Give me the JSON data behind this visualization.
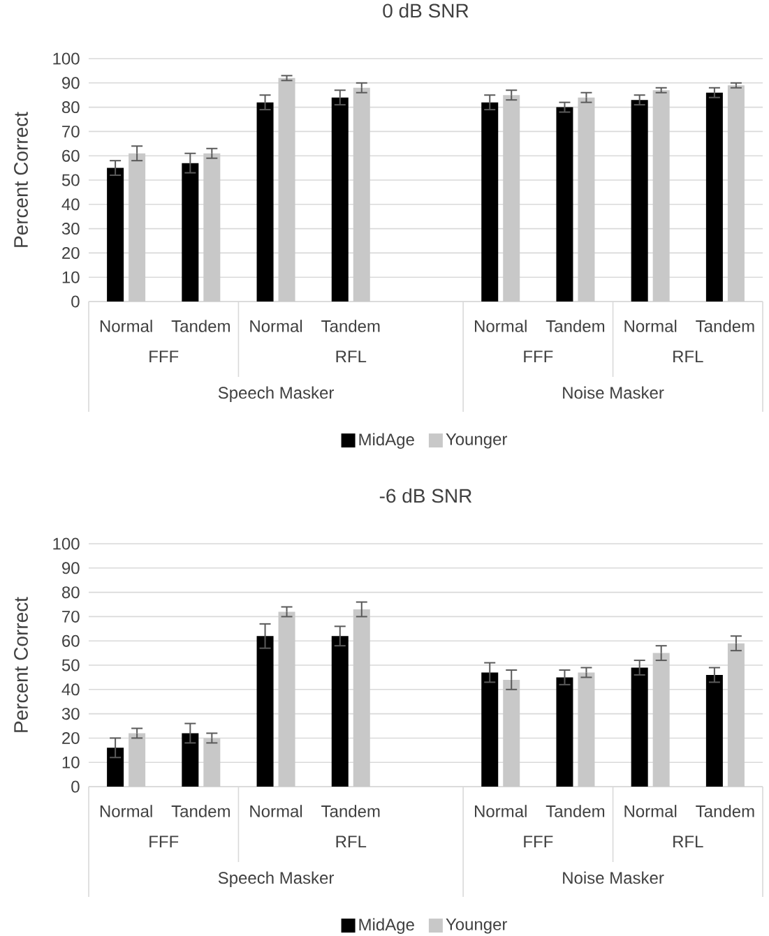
{
  "chart_data": [
    {
      "type": "bar",
      "title": "0 dB SNR",
      "ylabel": "Percent Correct",
      "categories": [
        "Normal",
        "Tandem",
        "Normal",
        "Tandem",
        null,
        "Normal",
        "Tandem",
        "Normal",
        "Tandem"
      ],
      "series": [
        {
          "name": "MidAge",
          "color": "#000000",
          "values": [
            55,
            57,
            82,
            84,
            null,
            82,
            80,
            83,
            86
          ],
          "errors": [
            3,
            4,
            3,
            3,
            null,
            3,
            2,
            2,
            2
          ]
        },
        {
          "name": "Younger",
          "color": "#c8c8c8",
          "values": [
            61,
            61,
            92,
            88,
            null,
            85,
            84,
            87,
            89
          ],
          "errors": [
            3,
            2,
            1,
            2,
            null,
            2,
            2,
            1,
            1
          ]
        }
      ],
      "ylim": [
        0,
        100
      ],
      "yticks": [
        0,
        10,
        20,
        30,
        40,
        50,
        60,
        70,
        80,
        90,
        100
      ],
      "grid": "y",
      "legend": "bottom",
      "annotations": [
        "FFF",
        "RFL",
        "FFF",
        "RFL",
        "Speech Masker",
        "Noise Masker"
      ]
    },
    {
      "type": "bar",
      "title": "-6 dB SNR",
      "ylabel": "Percent Correct",
      "categories": [
        "Normal",
        "Tandem",
        "Normal",
        "Tandem",
        null,
        "Normal",
        "Tandem",
        "Normal",
        "Tandem"
      ],
      "series": [
        {
          "name": "MidAge",
          "color": "#000000",
          "values": [
            16,
            22,
            62,
            62,
            null,
            47,
            45,
            49,
            46
          ],
          "errors": [
            4,
            4,
            5,
            4,
            null,
            4,
            3,
            3,
            3
          ]
        },
        {
          "name": "Younger",
          "color": "#c8c8c8",
          "values": [
            22,
            20,
            72,
            73,
            null,
            44,
            47,
            55,
            59
          ],
          "errors": [
            2,
            2,
            2,
            3,
            null,
            4,
            2,
            3,
            3
          ]
        }
      ],
      "ylim": [
        0,
        100
      ],
      "yticks": [
        0,
        10,
        20,
        30,
        40,
        50,
        60,
        70,
        80,
        90,
        100
      ],
      "grid": "y",
      "legend": "bottom",
      "annotations": [
        "FFF",
        "RFL",
        "FFF",
        "RFL",
        "Speech Masker",
        "Noise Masker"
      ]
    }
  ]
}
